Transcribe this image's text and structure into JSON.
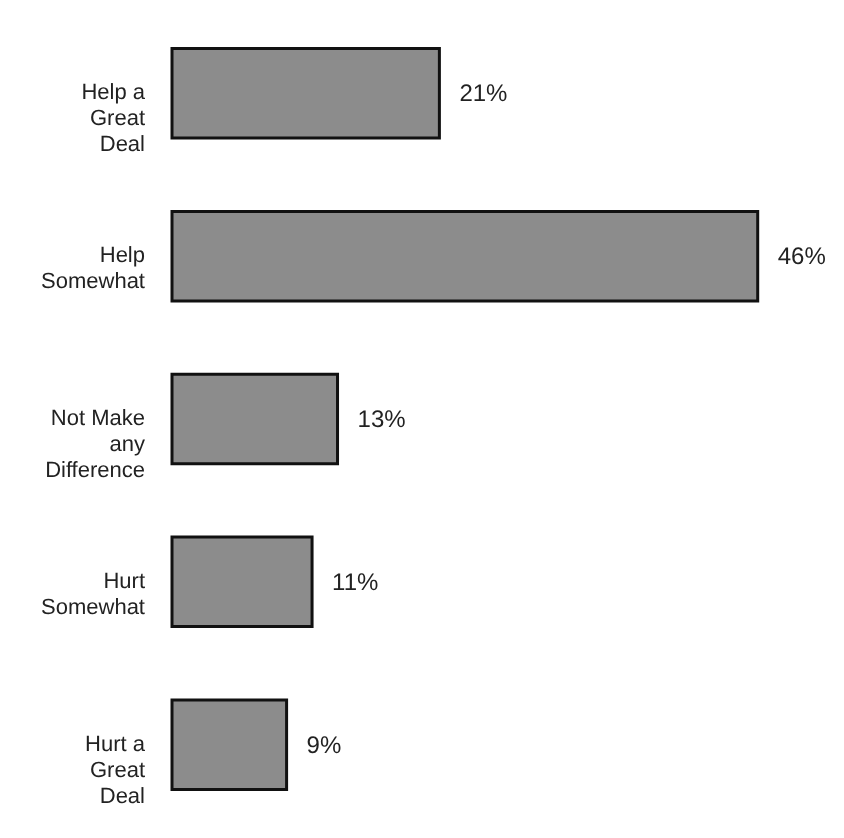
{
  "chart_data": {
    "type": "bar",
    "orientation": "horizontal",
    "categories": [
      "Help a Great Deal",
      "Help Somewhat",
      "Not Make any Difference",
      "Hurt Somewhat",
      "Hurt a Great Deal"
    ],
    "values": [
      21,
      46,
      13,
      11,
      9
    ],
    "value_labels": [
      "21%",
      "46%",
      "13%",
      "11%",
      "9%"
    ],
    "color": "#8c8c8c",
    "grid": false
  }
}
